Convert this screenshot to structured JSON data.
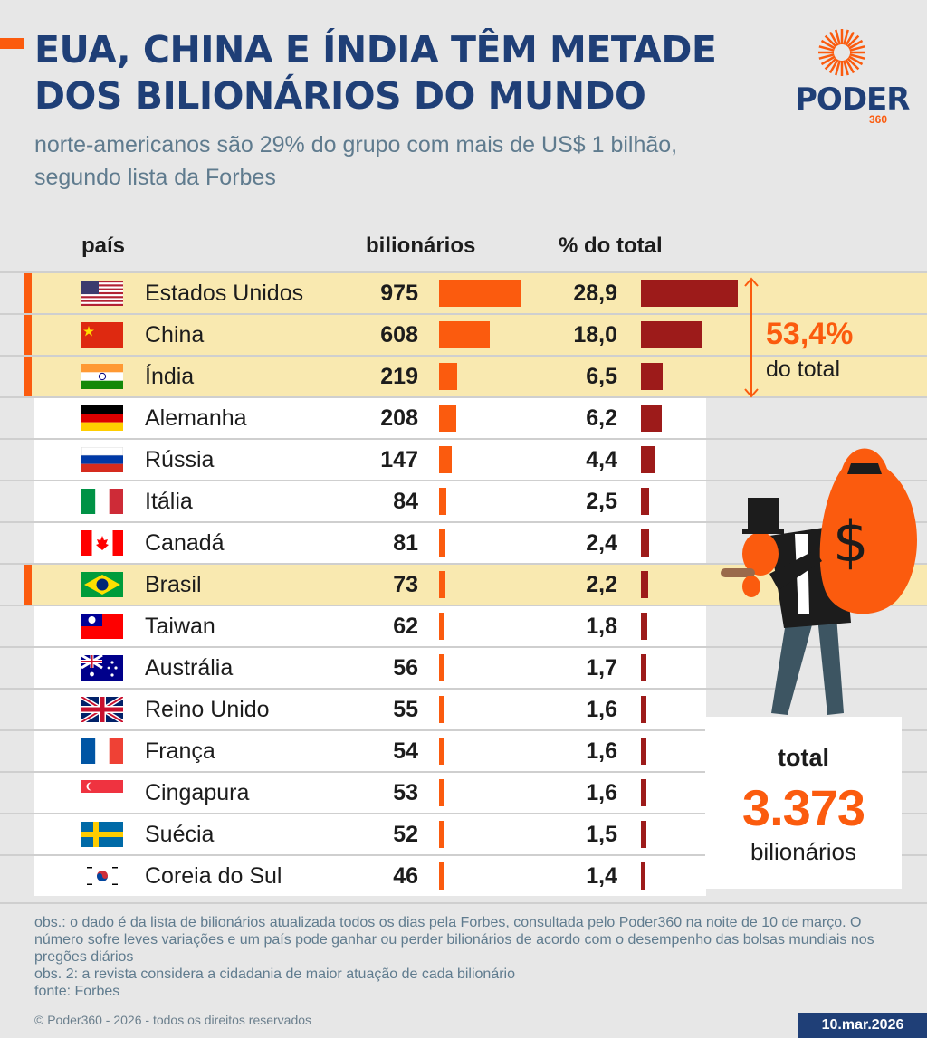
{
  "title": "EUA, CHINA E ÍNDIA TÊM METADE DOS BILIONÁRIOS DO MUNDO",
  "subtitle": "norte-americanos são 29% do grupo com mais de US$ 1 bilhão, segundo lista da Forbes",
  "logo": {
    "name": "PODER",
    "number": "360"
  },
  "columns": {
    "country": "país",
    "count": "bilionários",
    "share": "% do total"
  },
  "highlight": {
    "value": "53,4%",
    "label": "do total"
  },
  "total": {
    "label": "total",
    "value": "3.373",
    "unit": "bilionários"
  },
  "colors": {
    "accent": "#fb5b0e",
    "share_bar": "#9d1b1a",
    "navy": "#1f3f77",
    "highlight_band": "#f9e9b0",
    "row_band": "#ffffff",
    "background": "#e7e7e7"
  },
  "chart_data": {
    "type": "table",
    "columns": [
      "país",
      "bilionários",
      "% do total"
    ],
    "rows": [
      {
        "country": "Estados Unidos",
        "flag": "us-flag",
        "billionaires": 975,
        "billionaires_label": "975",
        "share": 28.9,
        "share_label": "28,9",
        "highlighted": true
      },
      {
        "country": "China",
        "flag": "china-flag",
        "billionaires": 608,
        "billionaires_label": "608",
        "share": 18.0,
        "share_label": "18,0",
        "highlighted": true
      },
      {
        "country": "Índia",
        "flag": "india-flag",
        "billionaires": 219,
        "billionaires_label": "219",
        "share": 6.5,
        "share_label": "6,5",
        "highlighted": true
      },
      {
        "country": "Alemanha",
        "flag": "germany-flag",
        "billionaires": 208,
        "billionaires_label": "208",
        "share": 6.2,
        "share_label": "6,2",
        "highlighted": false
      },
      {
        "country": "Rússia",
        "flag": "russia-flag",
        "billionaires": 147,
        "billionaires_label": "147",
        "share": 4.4,
        "share_label": "4,4",
        "highlighted": false
      },
      {
        "country": "Itália",
        "flag": "italy-flag",
        "billionaires": 84,
        "billionaires_label": "84",
        "share": 2.5,
        "share_label": "2,5",
        "highlighted": false
      },
      {
        "country": "Canadá",
        "flag": "canada-flag",
        "billionaires": 81,
        "billionaires_label": "81",
        "share": 2.4,
        "share_label": "2,4",
        "highlighted": false
      },
      {
        "country": "Brasil",
        "flag": "brazil-flag",
        "billionaires": 73,
        "billionaires_label": "73",
        "share": 2.2,
        "share_label": "2,2",
        "highlighted": true
      },
      {
        "country": "Taiwan",
        "flag": "taiwan-flag",
        "billionaires": 62,
        "billionaires_label": "62",
        "share": 1.8,
        "share_label": "1,8",
        "highlighted": false
      },
      {
        "country": "Austrália",
        "flag": "australia-flag",
        "billionaires": 56,
        "billionaires_label": "56",
        "share": 1.7,
        "share_label": "1,7",
        "highlighted": false
      },
      {
        "country": "Reino Unido",
        "flag": "uk-flag",
        "billionaires": 55,
        "billionaires_label": "55",
        "share": 1.6,
        "share_label": "1,6",
        "highlighted": false
      },
      {
        "country": "França",
        "flag": "france-flag",
        "billionaires": 54,
        "billionaires_label": "54",
        "share": 1.6,
        "share_label": "1,6",
        "highlighted": false
      },
      {
        "country": "Cingapura",
        "flag": "singapore-flag",
        "billionaires": 53,
        "billionaires_label": "53",
        "share": 1.6,
        "share_label": "1,6",
        "highlighted": false
      },
      {
        "country": "Suécia",
        "flag": "sweden-flag",
        "billionaires": 52,
        "billionaires_label": "52",
        "share": 1.5,
        "share_label": "1,5",
        "highlighted": false
      },
      {
        "country": "Coreia do Sul",
        "flag": "south-korea-flag",
        "billionaires": 46,
        "billionaires_label": "46",
        "share": 1.4,
        "share_label": "1,4",
        "highlighted": false
      }
    ]
  },
  "notes": [
    "obs.: o dado é da lista de bilionários atualizada todos os dias pela Forbes, consultada pelo Poder360 na noite de 10 de março. O número sofre leves variações e um país pode ganhar ou perder bilionários de acordo com o desempenho das bolsas mundiais nos pregões diários",
    "obs. 2: a revista considera a cidadania de maior atuação de cada bilionário",
    "fonte: Forbes"
  ],
  "copyright": "© Poder360 - 2026 - todos os direitos reservados",
  "date": "10.mar.2026"
}
